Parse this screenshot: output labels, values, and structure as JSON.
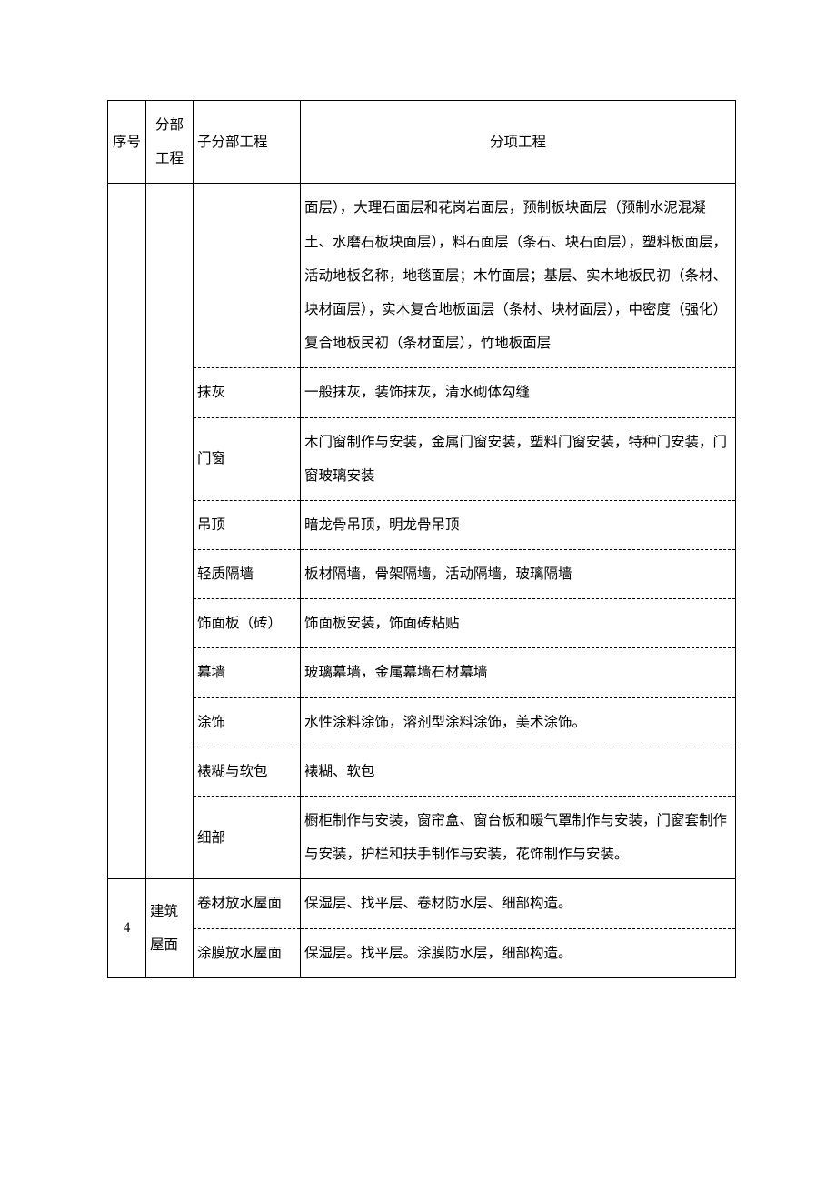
{
  "header": {
    "seq": "序号",
    "division": "分部工程",
    "subdivision": "子分部工程",
    "item": "分项工程"
  },
  "rows": [
    {
      "sub": "",
      "item": "面层），大理石面层和花岗岩面层，预制板块面层（预制水泥混凝土、水磨石板块面层），料石面层（条石、块石面层），塑料板面层，活动地板名称，地毯面层；木竹面层；基层、实木地板民初（条材、块材面层），实木复合地板面层（条材、块材面层），中密度（强化）复合地板民初（条材面层），竹地板面层"
    },
    {
      "sub": "抹灰",
      "item": "一般抹灰，装饰抹灰，清水砌体勾缝"
    },
    {
      "sub": "门窗",
      "item": "木门窗制作与安装，金属门窗安装，塑料门窗安装，特种门安装，门窗玻璃安装"
    },
    {
      "sub": "吊顶",
      "item": "暗龙骨吊顶，明龙骨吊顶"
    },
    {
      "sub": "轻质隔墙",
      "item": "板材隔墙，骨架隔墙，活动隔墙，玻璃隔墙"
    },
    {
      "sub": "饰面板（砖）",
      "item": "饰面板安装，饰面砖粘贴"
    },
    {
      "sub": "幕墙",
      "item": "玻璃幕墙，金属幕墙石材幕墙"
    },
    {
      "sub": "涂饰",
      "item": "水性涂料涂饰，溶剂型涂料涂饰，美术涂饰。"
    },
    {
      "sub": "裱糊与软包",
      "item": "裱糊、软包"
    },
    {
      "sub": "细部",
      "item": "橱柜制作与安装，窗帘盒、窗台板和暖气罩制作与安装，门窗套制作与安装，护栏和扶手制作与安装，花饰制作与安装。"
    }
  ],
  "section4": {
    "seq": "4",
    "division": "建筑屋面",
    "rows": [
      {
        "sub": "卷材放水屋面",
        "item": "保湿层、找平层、卷材防水层、细部构造。"
      },
      {
        "sub": "涂膜放水屋面",
        "item": "保湿层。找平层。涂膜防水层，细部构造。"
      }
    ]
  }
}
